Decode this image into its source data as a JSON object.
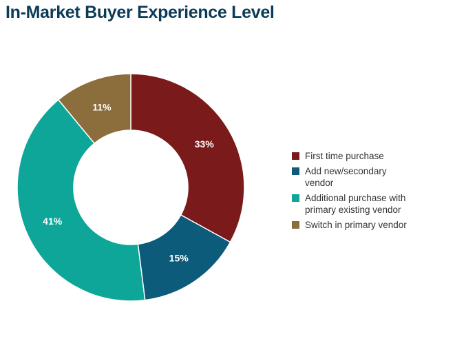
{
  "title": "In-Market Buyer Experience Level",
  "colors": {
    "first_time": "#7a1a1a",
    "add_new": "#0c5b7a",
    "additional": "#0fa69a",
    "switch": "#8c6d3c",
    "label_text": "#ffffff",
    "slice_border": "#ffffff"
  },
  "chart_data": {
    "type": "pie",
    "donut": true,
    "title": "In-Market Buyer Experience Level",
    "categories": [
      "First time purchase",
      "Add new/secondary vendor",
      "Additional purchase with primary existing vendor",
      "Switch in primary vendor"
    ],
    "values": [
      33,
      15,
      41,
      11
    ],
    "data_labels": [
      "33%",
      "15%",
      "41%",
      "11%"
    ],
    "legend_position": "right"
  },
  "legend": [
    {
      "label": "First time purchase",
      "color": "#7a1a1a"
    },
    {
      "label": "Add new/secondary\nvendor",
      "color": "#0c5b7a"
    },
    {
      "label": "Additional purchase with\nprimary existing vendor",
      "color": "#0fa69a"
    },
    {
      "label": "Switch in primary vendor",
      "color": "#8c6d3c"
    }
  ]
}
